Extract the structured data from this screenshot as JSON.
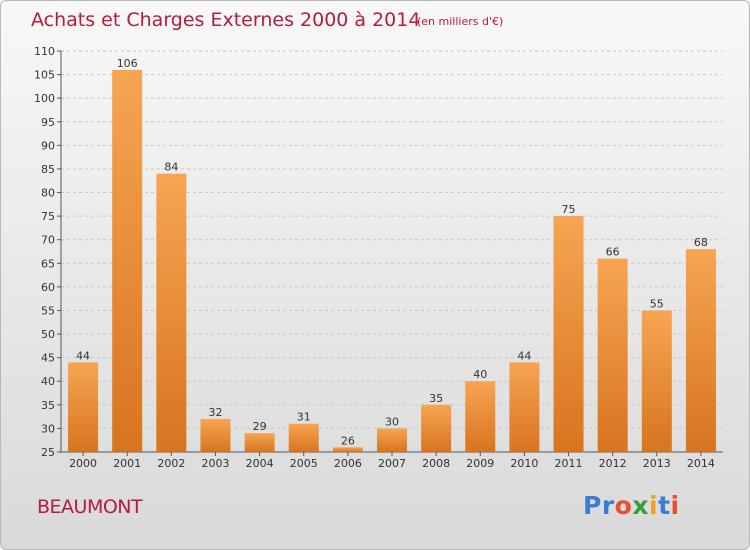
{
  "title": "Achats et Charges Externes 2000 à 2014",
  "subtitle": "(en milliers d'€)",
  "town": "BEAUMONT",
  "logo": {
    "text": "Proxiti",
    "letters": [
      {
        "ch": "P",
        "color": "#3a7bd5"
      },
      {
        "ch": "r",
        "color": "#3a7bd5"
      },
      {
        "ch": "o",
        "color": "#e8502f"
      },
      {
        "ch": "x",
        "color": "#3a9e3a"
      },
      {
        "ch": "i",
        "color": "#f0a020"
      },
      {
        "ch": "t",
        "color": "#3a7bd5"
      },
      {
        "ch": "i",
        "color": "#e8502f"
      }
    ]
  },
  "colors": {
    "bar_top": "#f6a552",
    "bar_bottom": "#d8741f",
    "title": "#b51c3c",
    "grid": "#c8c8c8"
  },
  "chart_data": {
    "type": "bar",
    "title": "Achats et Charges Externes 2000 à 2014",
    "subtitle": "(en milliers d'€)",
    "categories": [
      "2000",
      "2001",
      "2002",
      "2003",
      "2004",
      "2005",
      "2006",
      "2007",
      "2008",
      "2009",
      "2010",
      "2011",
      "2012",
      "2013",
      "2014"
    ],
    "values": [
      44,
      106,
      84,
      32,
      29,
      31,
      26,
      30,
      35,
      40,
      44,
      75,
      66,
      55,
      68
    ],
    "ylim": [
      25,
      110
    ],
    "yticks": [
      25,
      30,
      35,
      40,
      45,
      50,
      55,
      60,
      65,
      70,
      75,
      80,
      85,
      90,
      95,
      100,
      105,
      110
    ],
    "grid": true,
    "xlabel": "",
    "ylabel": ""
  }
}
